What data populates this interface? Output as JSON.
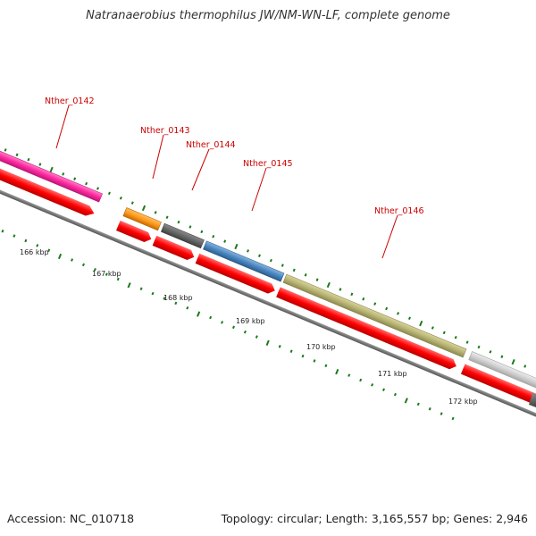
{
  "title": "Natranaerobius thermophilus JW/NM-WN-LF, complete genome",
  "accession_text": "Accession: NC_010718",
  "summary_text": "Topology: circular; Length: 3,165,557 bp; Genes: 2,946",
  "gene_labels": [
    "Nther_0142",
    "Nther_0143",
    "Nther_0144",
    "Nther_0145",
    "Nther_0146"
  ],
  "scale_labels": [
    "166 kbp",
    "167 kbp",
    "168 kbp",
    "169 kbp",
    "170 kbp",
    "171 kbp",
    "172 kbp"
  ],
  "colors": {
    "label_red": "#cc0000",
    "cds_red": "#ff0000",
    "backbone": "#777777",
    "tick_green": "#1a7a1a",
    "magenta": "#ff2aa0",
    "orange": "#ff9a1a",
    "dark_gray": "#666666",
    "blue": "#4a86c0",
    "olive": "#b8b474",
    "light_gray": "#cfcfcf"
  }
}
